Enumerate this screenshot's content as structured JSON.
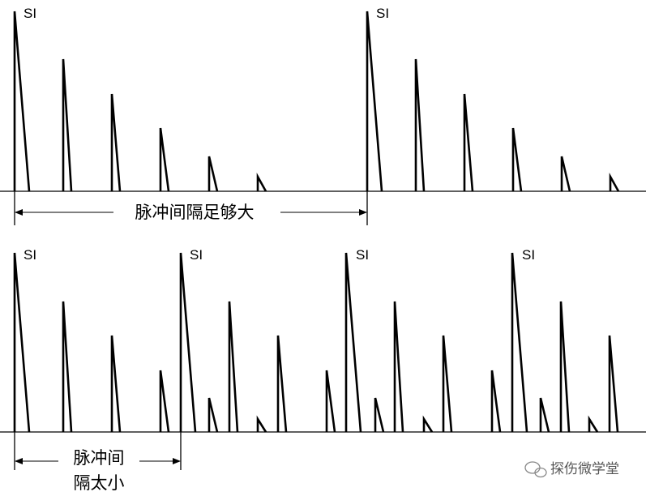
{
  "top": {
    "labels": [
      "SI",
      "SI"
    ],
    "caption": "脉冲间隔足够大"
  },
  "bottom": {
    "labels": [
      "SI",
      "SI",
      "SI",
      "SI"
    ],
    "caption_lines": [
      "脉冲间",
      "隔太小"
    ]
  },
  "watermark": "探伤微学堂"
}
